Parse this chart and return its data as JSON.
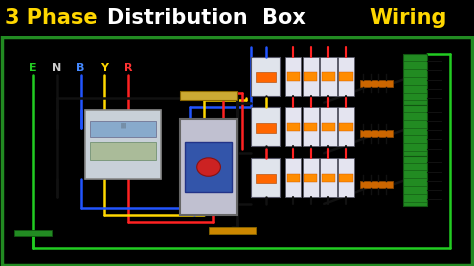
{
  "title_bg": "#000000",
  "diagram_bg": "#1a1a1a",
  "border_color": "#228B22",
  "wire_colors": {
    "earth": "#22CC22",
    "neutral": "#111111",
    "blue": "#2255FF",
    "yellow": "#FFD700",
    "red": "#FF2222",
    "orange": "#FF8C00",
    "black": "#111111"
  },
  "title_parts": [
    {
      "text": "3 Phase",
      "color": "#FFD700"
    },
    {
      "text": " Distribution  Box ",
      "color": "#FFFFFF"
    },
    {
      "text": "Wiring",
      "color": "#FFD700"
    }
  ],
  "labels": [
    {
      "letter": "E",
      "color": "#22CC22"
    },
    {
      "letter": "N",
      "color": "#111111"
    },
    {
      "letter": "B",
      "color": "#2255FF"
    },
    {
      "letter": "Y",
      "color": "#FFD700"
    },
    {
      "letter": "R",
      "color": "#FF2222"
    }
  ]
}
